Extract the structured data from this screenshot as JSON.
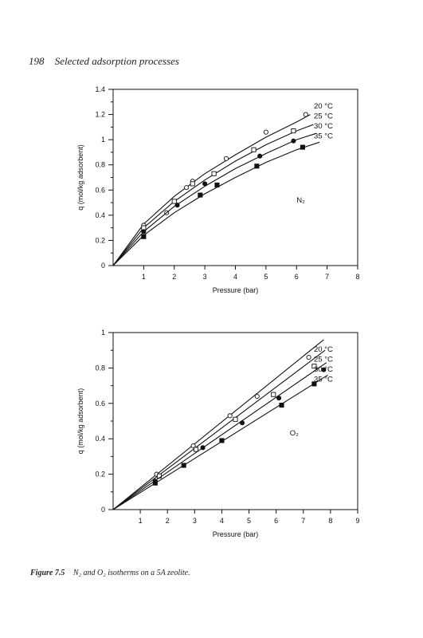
{
  "page": {
    "page_number": "198",
    "running_head": "Selected adsorption processes",
    "caption_label": "Figure 7.5",
    "caption_text": "N₂ and O₂ isotherms on a 5A zeolite."
  },
  "chart_data": [
    {
      "type": "scatter",
      "gas_label": "N₂",
      "xlabel": "Pressure (bar)",
      "ylabel": "q (mol/kg adsorbent)",
      "xlim": [
        0,
        8
      ],
      "ylim": [
        0,
        1.4
      ],
      "xticks": [
        1,
        2,
        3,
        4,
        5,
        6,
        7,
        8
      ],
      "yticks": [
        0,
        0.2,
        0.4,
        0.6,
        0.8,
        1,
        1.2,
        1.4
      ],
      "ytick_labels": [
        "0",
        "0.2",
        "0.4",
        "0.6",
        "0.8",
        "1",
        "1.2",
        "1.4"
      ],
      "legend_position": "top-right",
      "series": [
        {
          "name": "20 °C",
          "marker": "circle-open",
          "points": [
            [
              1.0,
              0.32
            ],
            [
              1.75,
              0.42
            ],
            [
              2.4,
              0.62
            ],
            [
              2.6,
              0.67
            ],
            [
              3.7,
              0.85
            ],
            [
              5.0,
              1.06
            ],
            [
              6.3,
              1.2
            ]
          ],
          "curve": [
            [
              0,
              0
            ],
            [
              1,
              0.33
            ],
            [
              2,
              0.55
            ],
            [
              3,
              0.73
            ],
            [
              4,
              0.88
            ],
            [
              5,
              1.02
            ],
            [
              6,
              1.14
            ],
            [
              6.45,
              1.2
            ]
          ]
        },
        {
          "name": "25 °C",
          "marker": "square-open",
          "points": [
            [
              1.0,
              0.3
            ],
            [
              2.0,
              0.51
            ],
            [
              2.6,
              0.65
            ],
            [
              3.3,
              0.73
            ],
            [
              4.6,
              0.92
            ],
            [
              5.9,
              1.07
            ]
          ],
          "curve": [
            [
              0,
              0
            ],
            [
              1,
              0.3
            ],
            [
              2,
              0.51
            ],
            [
              3,
              0.68
            ],
            [
              4,
              0.83
            ],
            [
              5,
              0.96
            ],
            [
              6,
              1.07
            ],
            [
              6.55,
              1.12
            ]
          ]
        },
        {
          "name": "30 °C",
          "marker": "circle-filled",
          "points": [
            [
              1.0,
              0.27
            ],
            [
              2.1,
              0.48
            ],
            [
              3.0,
              0.65
            ],
            [
              4.8,
              0.87
            ],
            [
              5.9,
              0.99
            ]
          ],
          "curve": [
            [
              0,
              0
            ],
            [
              1,
              0.27
            ],
            [
              2,
              0.47
            ],
            [
              3,
              0.63
            ],
            [
              4,
              0.77
            ],
            [
              5,
              0.89
            ],
            [
              6,
              1.0
            ],
            [
              6.65,
              1.05
            ]
          ]
        },
        {
          "name": "35 °C",
          "marker": "square-filled",
          "points": [
            [
              1.0,
              0.23
            ],
            [
              2.85,
              0.56
            ],
            [
              3.4,
              0.64
            ],
            [
              4.7,
              0.79
            ],
            [
              6.2,
              0.94
            ]
          ],
          "curve": [
            [
              0,
              0
            ],
            [
              1,
              0.24
            ],
            [
              2,
              0.42
            ],
            [
              3,
              0.57
            ],
            [
              4,
              0.7
            ],
            [
              5,
              0.82
            ],
            [
              6,
              0.92
            ],
            [
              6.75,
              0.98
            ]
          ]
        }
      ]
    },
    {
      "type": "scatter",
      "gas_label": "O₂",
      "xlabel": "Pressure (bar)",
      "ylabel": "q (mol/kg adsorbent)",
      "xlim": [
        0,
        9
      ],
      "ylim": [
        0,
        1
      ],
      "xticks": [
        1,
        2,
        3,
        4,
        5,
        6,
        7,
        8,
        9
      ],
      "yticks": [
        0,
        0.2,
        0.4,
        0.6,
        0.8,
        1
      ],
      "ytick_labels": [
        "0",
        "0.2",
        "0.4",
        "0.6",
        "0.8",
        "1"
      ],
      "legend_position": "top-right",
      "series": [
        {
          "name": "20 °C",
          "marker": "circle-open",
          "points": [
            [
              1.6,
              0.2
            ],
            [
              2.95,
              0.36
            ],
            [
              4.3,
              0.53
            ],
            [
              5.3,
              0.64
            ],
            [
              7.2,
              0.86
            ]
          ],
          "curve": [
            [
              0,
              0
            ],
            [
              7.75,
              0.96
            ]
          ]
        },
        {
          "name": "25 °C",
          "marker": "square-open",
          "points": [
            [
              1.7,
              0.19
            ],
            [
              3.05,
              0.34
            ],
            [
              4.5,
              0.51
            ],
            [
              5.9,
              0.65
            ],
            [
              7.4,
              0.81
            ]
          ],
          "curve": [
            [
              0,
              0
            ],
            [
              7.8,
              0.9
            ]
          ]
        },
        {
          "name": "30 °C",
          "marker": "circle-filled",
          "points": [
            [
              1.55,
              0.16
            ],
            [
              3.3,
              0.35
            ],
            [
              4.75,
              0.49
            ],
            [
              6.1,
              0.63
            ],
            [
              7.75,
              0.79
            ]
          ],
          "curve": [
            [
              0,
              0
            ],
            [
              7.85,
              0.83
            ]
          ]
        },
        {
          "name": "35 °C",
          "marker": "square-filled",
          "points": [
            [
              1.55,
              0.15
            ],
            [
              2.6,
              0.25
            ],
            [
              4.0,
              0.39
            ],
            [
              6.2,
              0.59
            ],
            [
              7.4,
              0.71
            ]
          ],
          "curve": [
            [
              0,
              0
            ],
            [
              7.9,
              0.76
            ]
          ]
        }
      ]
    }
  ]
}
